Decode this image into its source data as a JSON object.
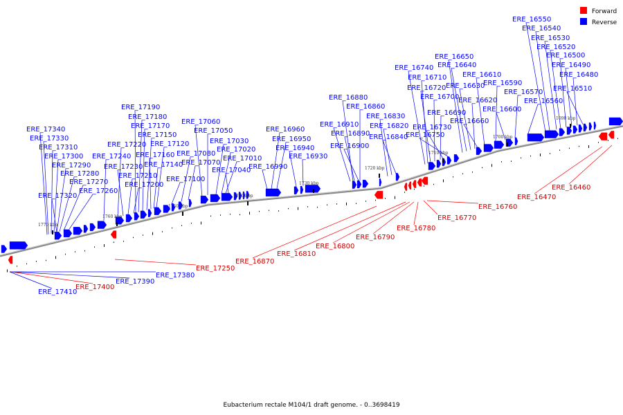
{
  "caption": "Eubacterium rectale M104/1 draft genome. - 0..3698419",
  "legend": [
    {
      "label": "Forward",
      "color": "#ff0000"
    },
    {
      "label": "Reverse",
      "color": "#0000ff"
    }
  ],
  "colors": {
    "forward": "#ff0000",
    "reverse": "#0000ff",
    "backbone": "#888888"
  },
  "scale_ticks": [
    "1770 kbp",
    "1760 kbp",
    "1750 kbp",
    "1740 kbp",
    "1730 kbp",
    "1720 kbp",
    "1710 kbp",
    "1700 kbp",
    "1690 kbp"
  ],
  "reverse_genes": [
    "ERE_17340",
    "ERE_17330",
    "ERE_17310",
    "ERE_17300",
    "ERE_17290",
    "ERE_17280",
    "ERE_17270",
    "ERE_17260",
    "ERE_17320",
    "ERE_17240",
    "ERE_17220",
    "ERE_17230",
    "ERE_17210",
    "ERE_17200",
    "ERE_17190",
    "ERE_17180",
    "ERE_17170",
    "ERE_17150",
    "ERE_17160",
    "ERE_17140",
    "ERE_17120",
    "ERE_17100",
    "ERE_17080",
    "ERE_17070",
    "ERE_17060",
    "ERE_17050",
    "ERE_17030",
    "ERE_17020",
    "ERE_17010",
    "ERE_17040",
    "ERE_16960",
    "ERE_16950",
    "ERE_16940",
    "ERE_16930",
    "ERE_16990",
    "ERE_16880",
    "ERE_16860",
    "ERE_16910",
    "ERE_16890",
    "ERE_16900",
    "ERE_16830",
    "ERE_16820",
    "ERE_16840",
    "ERE_16740",
    "ERE_16710",
    "ERE_16720",
    "ERE_16700",
    "ERE_16690",
    "ERE_16730",
    "ERE_16750",
    "ERE_16650",
    "ERE_16640",
    "ERE_16630",
    "ERE_16620",
    "ERE_16660",
    "ERE_16610",
    "ERE_16590",
    "ERE_16600",
    "ERE_16570",
    "ERE_16560",
    "ERE_16550",
    "ERE_16540",
    "ERE_16530",
    "ERE_16520",
    "ERE_16500",
    "ERE_16490",
    "ERE_16480",
    "ERE_16510",
    "ERE_17390",
    "ERE_17380",
    "ERE_17410"
  ],
  "forward_genes": [
    "ERE_17400",
    "ERE_17250",
    "ERE_16870",
    "ERE_16810",
    "ERE_16800",
    "ERE_16790",
    "ERE_16780",
    "ERE_16770",
    "ERE_16760",
    "ERE_16470",
    "ERE_16460"
  ]
}
